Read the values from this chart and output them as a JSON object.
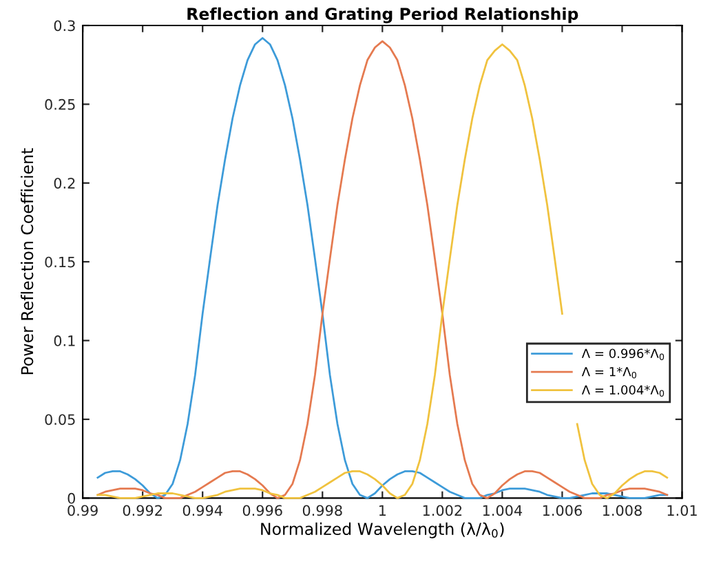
{
  "chart_data": {
    "type": "line",
    "title": "Reflection and Grating Period Relationship",
    "xlabel": "Normalized Wavelength (λ/λ$_{0}$)",
    "ylabel": "Power Reflection Coefficient",
    "x": [
      0.9905,
      0.99075,
      0.991,
      0.99125,
      0.9915,
      0.99175,
      0.992,
      0.99225,
      0.9925,
      0.99275,
      0.993,
      0.99325,
      0.9935,
      0.99375,
      0.994,
      0.99425,
      0.9945,
      0.99475,
      0.995,
      0.99525,
      0.9955,
      0.99575,
      0.996,
      0.99625,
      0.9965,
      0.99675,
      0.997,
      0.99725,
      0.9975,
      0.99775,
      0.998,
      0.99825,
      0.9985,
      0.99875,
      0.999,
      0.99925,
      0.9995,
      0.99975,
      1,
      1.00025,
      1.0005,
      1.00075,
      1.001,
      1.00125,
      1.0015,
      1.00175,
      1.002,
      1.00225,
      1.0025,
      1.00275,
      1.003,
      1.00325,
      1.0035,
      1.00375,
      1.004,
      1.00425,
      1.0045,
      1.00475,
      1.005,
      1.00525,
      1.0055,
      1.00575,
      1.006,
      1.00625,
      1.0065,
      1.00675,
      1.007,
      1.00725,
      1.0075,
      1.00775,
      1.008,
      1.00825,
      1.0085,
      1.00875,
      1.009,
      1.00925,
      1.0095
    ],
    "series": [
      {
        "name": "Λ = 0.996*Λ$_{0}$",
        "color": "#3d9bd9",
        "values": [
          0.013,
          0.016,
          0.017,
          0.017,
          0.015,
          0.012,
          0.008,
          0.003,
          0,
          0.002,
          0.009,
          0.024,
          0.047,
          0.078,
          0.117,
          0.152,
          0.186,
          0.215,
          0.241,
          0.262,
          0.278,
          0.288,
          0.292,
          0.288,
          0.278,
          0.262,
          0.241,
          0.215,
          0.186,
          0.152,
          0.117,
          0.078,
          0.047,
          0.024,
          0.009,
          0.002,
          0,
          0.003,
          0.008,
          0.012,
          0.015,
          0.017,
          0.017,
          0.016,
          0.013,
          0.01,
          0.007,
          0.004,
          0.002,
          0,
          0,
          0,
          0.002,
          0.003,
          0.005,
          0.006,
          0.006,
          0.006,
          0.005,
          0.004,
          0.002,
          0.001,
          0,
          0,
          0.001,
          0.002,
          0.003,
          0.003,
          0.003,
          0.002,
          0.001,
          0,
          0,
          0,
          0.001,
          0.002,
          0.002
        ]
      },
      {
        "name": "Λ = 1*Λ$_{0}$",
        "color": "#e57a50",
        "values": [
          0.002,
          0.004,
          0.005,
          0.006,
          0.006,
          0.006,
          0.005,
          0.003,
          0.002,
          0,
          0,
          0,
          0.002,
          0.004,
          0.007,
          0.01,
          0.013,
          0.016,
          0.017,
          0.017,
          0.015,
          0.012,
          0.008,
          0.003,
          0,
          0.002,
          0.009,
          0.024,
          0.047,
          0.078,
          0.117,
          0.152,
          0.186,
          0.215,
          0.241,
          0.262,
          0.278,
          0.286,
          0.29,
          0.286,
          0.278,
          0.262,
          0.241,
          0.215,
          0.186,
          0.152,
          0.117,
          0.078,
          0.047,
          0.024,
          0.009,
          0.002,
          0,
          0.003,
          0.008,
          0.012,
          0.015,
          0.017,
          0.017,
          0.016,
          0.013,
          0.01,
          0.007,
          0.004,
          0.002,
          0,
          0,
          0,
          0.002,
          0.003,
          0.005,
          0.006,
          0.006,
          0.006,
          0.005,
          0.004,
          0.002
        ]
      },
      {
        "name": "Λ = 1.004*Λ$_{0}$",
        "color": "#f0c23e",
        "values": [
          0.002,
          0.002,
          0.001,
          0,
          0,
          0,
          0.001,
          0.002,
          0.003,
          0.003,
          0.003,
          0.002,
          0.001,
          0,
          0,
          0.001,
          0.002,
          0.004,
          0.005,
          0.006,
          0.006,
          0.006,
          0.005,
          0.003,
          0.002,
          0,
          0,
          0,
          0.002,
          0.004,
          0.007,
          0.01,
          0.013,
          0.016,
          0.017,
          0.017,
          0.015,
          0.012,
          0.008,
          0.003,
          0,
          0.002,
          0.009,
          0.024,
          0.047,
          0.078,
          0.117,
          0.152,
          0.186,
          0.215,
          0.241,
          0.262,
          0.278,
          0.284,
          0.288,
          0.284,
          0.278,
          0.262,
          0.241,
          0.215,
          0.186,
          0.152,
          0.117,
          null,
          0.047,
          0.024,
          0.009,
          0.002,
          0,
          0.003,
          0.008,
          0.012,
          0.015,
          0.017,
          0.017,
          0.016,
          0.013
        ]
      }
    ],
    "xlim": [
      0.99,
      1.01
    ],
    "xticks": [
      0.99,
      0.992,
      0.994,
      0.996,
      0.998,
      1,
      1.002,
      1.004,
      1.006,
      1.008,
      1.01
    ],
    "ylim": [
      0,
      0.3
    ],
    "yticks": [
      0,
      0.05,
      0.1,
      0.15,
      0.2,
      0.25,
      0.3
    ],
    "grid": false,
    "legend": "right",
    "marker": "none",
    "line_style": "solid"
  }
}
